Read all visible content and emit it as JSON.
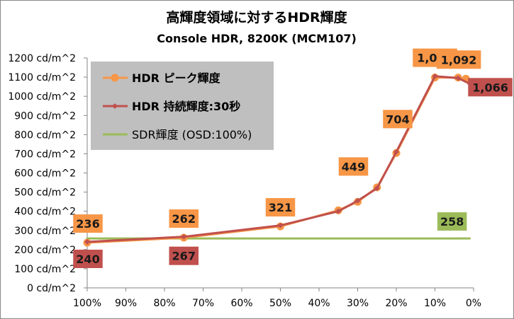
{
  "chart_data": {
    "type": "line",
    "title": "高輝度領域に対するHDR輝度",
    "subtitle": "Console HDR, 8200K (MCM107)",
    "x_axis": {
      "ticks": [
        100,
        90,
        80,
        70,
        60,
        50,
        40,
        30,
        20,
        10,
        0
      ],
      "tick_labels": [
        "100%",
        "90%",
        "80%",
        "70%",
        "60%",
        "50%",
        "40%",
        "30%",
        "20%",
        "10%",
        "0%"
      ],
      "range": [
        100,
        0
      ]
    },
    "y_axis": {
      "ticks": [
        0,
        100,
        200,
        300,
        400,
        500,
        600,
        700,
        800,
        900,
        1000,
        1100,
        1200
      ],
      "tick_labels": [
        "0 cd/m^2",
        "100 cd/m^2",
        "200 cd/m^2",
        "300 cd/m^2",
        "400 cd/m^2",
        "500 cd/m^2",
        "600 cd/m^2",
        "700 cd/m^2",
        "800 cd/m^2",
        "900 cd/m^2",
        "1000 cd/m^2",
        "1100 cd/m^2",
        "1200 cd/m^2"
      ],
      "range": [
        0,
        1200
      ]
    },
    "grid": false,
    "legend_position": "top-left",
    "series": [
      {
        "name": "HDR ピーク輝度",
        "color": "#F79646",
        "marker": "circle",
        "x": [
          100,
          75,
          50,
          35,
          30,
          25,
          20,
          10,
          4,
          2
        ],
        "y": [
          236,
          262,
          321,
          405,
          449,
          525,
          704,
          1098,
          1098,
          1092
        ]
      },
      {
        "name": "HDR 持続輝度:30秒",
        "color": "#C0504D",
        "marker": "diamond",
        "x": [
          100,
          75,
          50,
          35,
          30,
          25,
          20,
          10,
          4,
          1
        ],
        "y": [
          240,
          267,
          326,
          400,
          455,
          520,
          710,
          1105,
          1095,
          1066
        ]
      },
      {
        "name": "SDR輝度 (OSD:100%)",
        "color": "#9BBB59",
        "marker": "none",
        "x": [
          100,
          1
        ],
        "y": [
          258,
          258
        ]
      }
    ],
    "annotations": [
      {
        "text": "236",
        "series": 0
      },
      {
        "text": "262",
        "series": 0
      },
      {
        "text": "321",
        "series": 0
      },
      {
        "text": "449",
        "series": 0
      },
      {
        "text": "704",
        "series": 0
      },
      {
        "text": "1,098",
        "series": 0
      },
      {
        "text": "1,092",
        "series": 0
      },
      {
        "text": "240",
        "series": 1
      },
      {
        "text": "267",
        "series": 1
      },
      {
        "text": "1,066",
        "series": 1
      },
      {
        "text": "258",
        "series": 2
      }
    ]
  }
}
